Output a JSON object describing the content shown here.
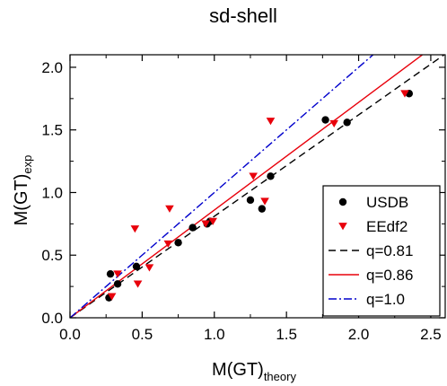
{
  "chart_data": {
    "type": "scatter",
    "title": "sd-shell",
    "xlabel": {
      "main": "M(GT)",
      "sub": "theory"
    },
    "ylabel": {
      "main": "M(GT)",
      "sub": "exp"
    },
    "xlim": [
      0,
      2.6
    ],
    "ylim": [
      0,
      2.1
    ],
    "xticks": [
      0.0,
      0.5,
      1.0,
      1.5,
      2.0,
      2.5
    ],
    "xtick_labels": [
      "0.0",
      "0.5",
      "1.0",
      "1.5",
      "2.0",
      "2.5"
    ],
    "yticks": [
      0.0,
      0.5,
      1.0,
      1.5,
      2.0
    ],
    "ytick_labels": [
      "0.0",
      "0.5",
      "1.0",
      "1.5",
      "2.0"
    ],
    "grid": false,
    "legend_position": "lower-right",
    "series": [
      {
        "name": "USDB",
        "marker": "circle",
        "color": "#000000",
        "points": [
          [
            0.27,
            0.16
          ],
          [
            0.28,
            0.35
          ],
          [
            0.33,
            0.27
          ],
          [
            0.46,
            0.41
          ],
          [
            0.75,
            0.6
          ],
          [
            0.85,
            0.72
          ],
          [
            0.95,
            0.75
          ],
          [
            0.97,
            0.77
          ],
          [
            1.25,
            0.94
          ],
          [
            1.33,
            0.87
          ],
          [
            1.39,
            1.13
          ],
          [
            1.77,
            1.58
          ],
          [
            1.92,
            1.56
          ],
          [
            2.35,
            1.79
          ]
        ]
      },
      {
        "name": "EEdf2",
        "marker": "triangle-down",
        "color": "#e8000b",
        "points": [
          [
            0.29,
            0.17
          ],
          [
            0.33,
            0.35
          ],
          [
            0.45,
            0.71
          ],
          [
            0.47,
            0.27
          ],
          [
            0.55,
            0.4
          ],
          [
            0.68,
            0.59
          ],
          [
            0.69,
            0.87
          ],
          [
            0.94,
            0.75
          ],
          [
            0.99,
            0.77
          ],
          [
            1.27,
            1.13
          ],
          [
            1.35,
            0.93
          ],
          [
            1.39,
            1.57
          ],
          [
            1.83,
            1.55
          ],
          [
            2.32,
            1.79
          ]
        ]
      }
    ],
    "lines": [
      {
        "name": "q=0.81",
        "slope": 0.81,
        "color": "#000000",
        "dash": "8,5"
      },
      {
        "name": "q=0.86",
        "slope": 0.86,
        "color": "#e8000b",
        "dash": ""
      },
      {
        "name": "q=1.0",
        "slope": 1.0,
        "color": "#0000cc",
        "dash": "9,3,2,3"
      }
    ]
  }
}
